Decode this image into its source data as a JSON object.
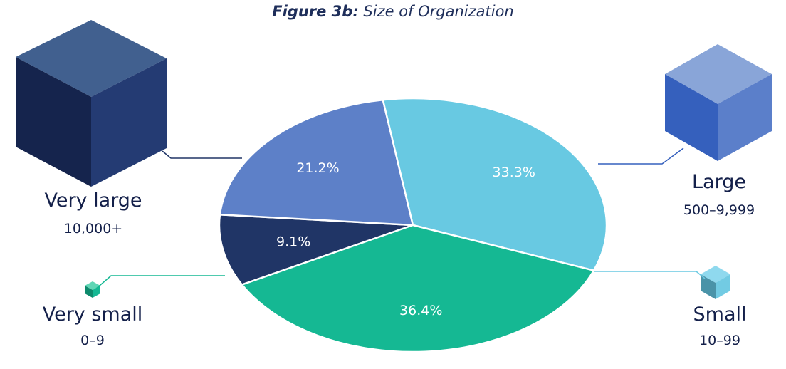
{
  "chart_data": {
    "type": "pie",
    "title_prefix": "Figure 3b:",
    "title": "Size of Organization",
    "slices": [
      {
        "name": "Very large",
        "range": "10,000+",
        "label": "9.1%",
        "value": 9.1,
        "color": "#203566"
      },
      {
        "name": "Large",
        "range": "500–9,999",
        "label": "21.2%",
        "value": 21.2,
        "color": "#5d80c8"
      },
      {
        "name": "Small",
        "range": "10–99",
        "label": "33.3%",
        "value": 33.3,
        "color": "#68c9e2"
      },
      {
        "name": "Very small",
        "range": "0–9",
        "label": "36.4%",
        "value": 36.4,
        "color": "#15b893"
      }
    ]
  }
}
